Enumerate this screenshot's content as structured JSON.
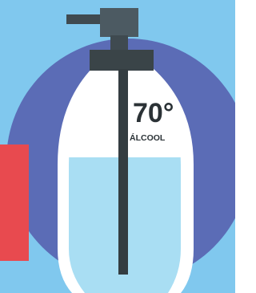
{
  "label": {
    "percent": "70°",
    "name": "ÁLCOOL"
  }
}
